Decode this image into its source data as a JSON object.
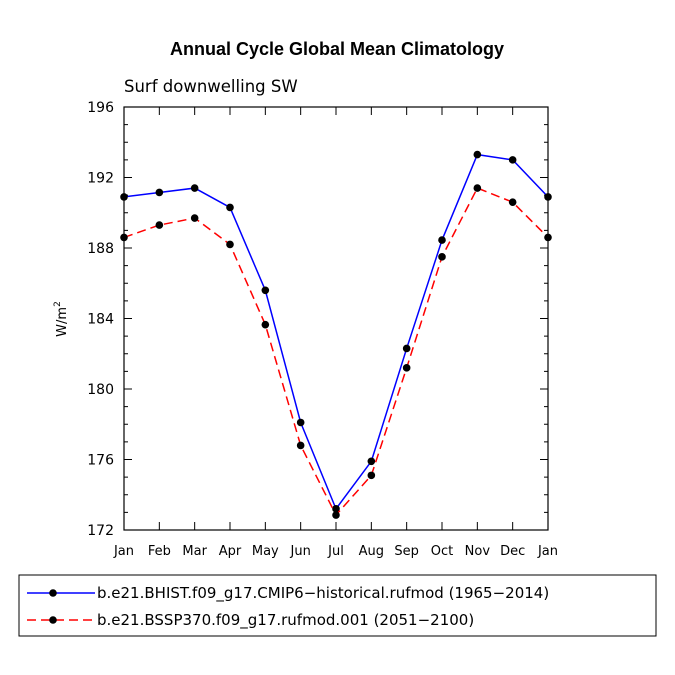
{
  "chart_data": {
    "type": "line",
    "title": "Annual Cycle Global Mean Climatology",
    "subtitle": "Surf downwelling SW",
    "ylabel_base": "W/m",
    "ylabel_sup": "2",
    "xlabel": "",
    "categories": [
      "Jan",
      "Feb",
      "Mar",
      "Apr",
      "May",
      "Jun",
      "Jul",
      "Aug",
      "Sep",
      "Oct",
      "Nov",
      "Dec",
      "Jan"
    ],
    "ylim": [
      172,
      196
    ],
    "yticks": [
      172,
      176,
      180,
      184,
      188,
      192,
      196
    ],
    "grid": false,
    "legend_position": "bottom",
    "series": [
      {
        "name": "b.e21.BHIST.f09_g17.CMIP6−historical.rufmod (1965−2014)",
        "color": "#0000ff",
        "dash": "solid",
        "values": [
          190.9,
          191.15,
          191.4,
          190.3,
          185.6,
          178.1,
          173.2,
          175.9,
          182.3,
          188.45,
          193.3,
          193.0,
          190.9
        ]
      },
      {
        "name": "b.e21.BSSP370.f09_g17.rufmod.001 (2051−2100)",
        "color": "#ff0000",
        "dash": "dashed",
        "values": [
          188.6,
          189.3,
          189.7,
          188.2,
          183.65,
          176.8,
          172.85,
          175.1,
          181.2,
          187.5,
          191.4,
          190.6,
          188.6
        ]
      }
    ]
  }
}
